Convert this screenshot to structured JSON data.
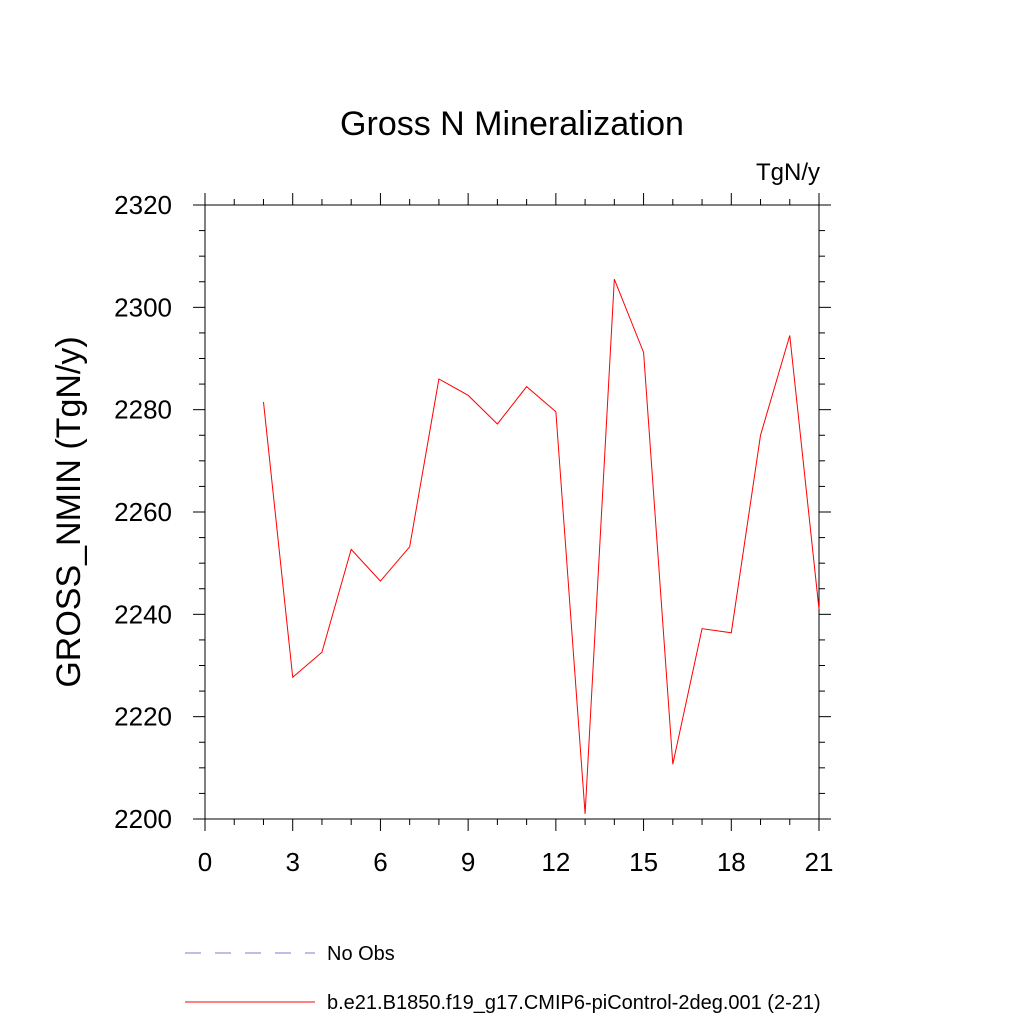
{
  "chart_data": {
    "type": "line",
    "title": "Gross N Mineralization",
    "units_label": "TgN/y",
    "xlabel": "",
    "ylabel": "GROSS_NMIN  (TgN/y)",
    "xlim": [
      0,
      21
    ],
    "ylim": [
      2200,
      2320
    ],
    "x_major_ticks": [
      0,
      3,
      6,
      9,
      12,
      15,
      18,
      21
    ],
    "x_tick_labels": [
      "0",
      "3",
      "6",
      "9",
      "12",
      "15",
      "18",
      "21"
    ],
    "x_minor_step": 1,
    "y_major_ticks": [
      2200,
      2220,
      2240,
      2260,
      2280,
      2300,
      2320
    ],
    "y_tick_labels": [
      "2200",
      "2220",
      "2240",
      "2260",
      "2280",
      "2300",
      "2320"
    ],
    "y_minor_step": 5,
    "grid": false,
    "legend_position": "bottom",
    "series": [
      {
        "name": "No Obs",
        "style": "dashed",
        "color": "#7b7bd6",
        "x": [],
        "values": []
      },
      {
        "name": "b.e21.B1850.f19_g17.CMIP6-piControl-2deg.001 (2-21)",
        "style": "solid",
        "color": "#ff0000",
        "x": [
          2,
          3,
          4,
          5,
          6,
          7,
          8,
          9,
          10,
          11,
          12,
          13,
          14,
          15,
          16,
          17,
          18,
          19,
          20,
          21
        ],
        "values": [
          2281.5,
          2227.7,
          2232.6,
          2252.7,
          2246.5,
          2253.2,
          2286.0,
          2282.8,
          2277.2,
          2284.5,
          2279.6,
          2201.0,
          2305.5,
          2291.2,
          2210.7,
          2237.2,
          2236.4,
          2275.0,
          2294.5,
          2241.0
        ]
      }
    ]
  }
}
